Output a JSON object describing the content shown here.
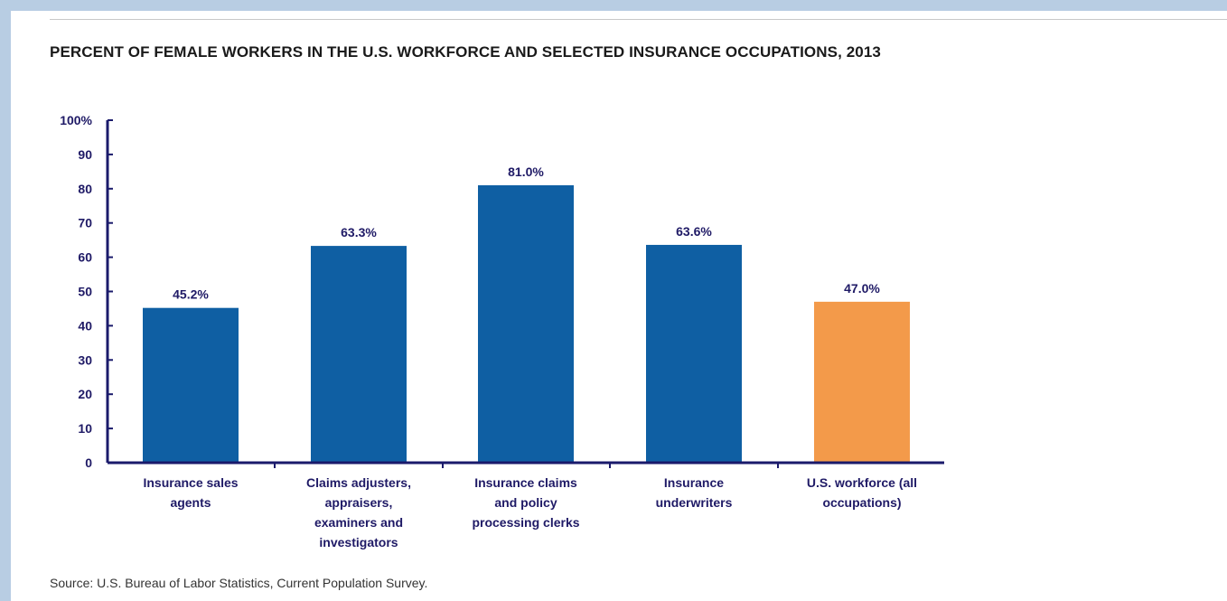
{
  "source": "Source: U.S. Bureau of Labor Statistics, Current Population Survey.",
  "colors": {
    "bar_default": "#0f5fa3",
    "bar_highlight": "#f39a4a",
    "axis": "#1a1a6b",
    "text": "#1f1a66"
  },
  "chart_data": {
    "type": "bar",
    "title": "PERCENT OF FEMALE WORKERS IN THE U.S. WORKFORCE AND SELECTED INSURANCE OCCUPATIONS, 2013",
    "categories": [
      [
        "Insurance sales",
        "agents"
      ],
      [
        "Claims adjusters,",
        "appraisers,",
        "examiners and",
        "investigators"
      ],
      [
        "Insurance claims",
        "and policy",
        "processing clerks"
      ],
      [
        "Insurance",
        "underwriters"
      ],
      [
        "U.S. workforce (all",
        "occupations)"
      ]
    ],
    "values": [
      45.2,
      63.3,
      81.0,
      63.6,
      47.0
    ],
    "data_labels": [
      "45.2%",
      "63.3%",
      "81.0%",
      "63.6%",
      "47.0%"
    ],
    "bar_colors": [
      "#0f5fa3",
      "#0f5fa3",
      "#0f5fa3",
      "#0f5fa3",
      "#f39a4a"
    ],
    "ylim": [
      0,
      100
    ],
    "yticks": [
      0,
      10,
      20,
      30,
      40,
      50,
      60,
      70,
      80,
      90,
      100
    ],
    "ytick_labels": [
      "0",
      "10",
      "20",
      "30",
      "40",
      "50",
      "60",
      "70",
      "80",
      "90",
      "100%"
    ],
    "xlabel": "",
    "ylabel": "",
    "grid": false,
    "legend": "none"
  }
}
